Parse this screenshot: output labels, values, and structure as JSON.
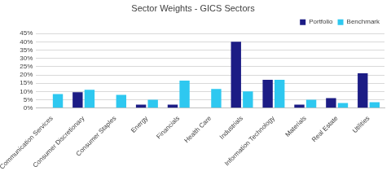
{
  "chart_data": {
    "type": "bar",
    "title": "Sector Weights - GICS Sectors",
    "categories": [
      "Communication Services",
      "Consumer Discretionary",
      "Consumer Staples",
      "Energy",
      "Financials",
      "Health Care",
      "Industrials",
      "Information Technology",
      "Materials",
      "Real Estate",
      "Utilities"
    ],
    "series": [
      {
        "name": "Portfolio",
        "color": "#1c1c85",
        "values": [
          0,
          9.5,
          0,
          2,
          2,
          0,
          40,
          17,
          2,
          6,
          21
        ]
      },
      {
        "name": "Benchmark",
        "color": "#2ec8f0",
        "values": [
          8.5,
          11,
          8,
          5,
          16.5,
          11.5,
          10,
          17,
          5,
          3,
          3.5
        ]
      }
    ],
    "ylim": [
      0,
      45
    ],
    "yticks": [
      {
        "value": 0,
        "label": "0%"
      },
      {
        "value": 5,
        "label": "5%"
      },
      {
        "value": 10,
        "label": "10%"
      },
      {
        "value": 15,
        "label": "15%"
      },
      {
        "value": 20,
        "label": "20%"
      },
      {
        "value": 25,
        "label": "25%"
      },
      {
        "value": 30,
        "label": "30%"
      },
      {
        "value": 35,
        "label": "35%"
      },
      {
        "value": 40,
        "label": "40%"
      },
      {
        "value": 45,
        "label": "45%"
      }
    ],
    "grid": true,
    "legend": "top"
  }
}
